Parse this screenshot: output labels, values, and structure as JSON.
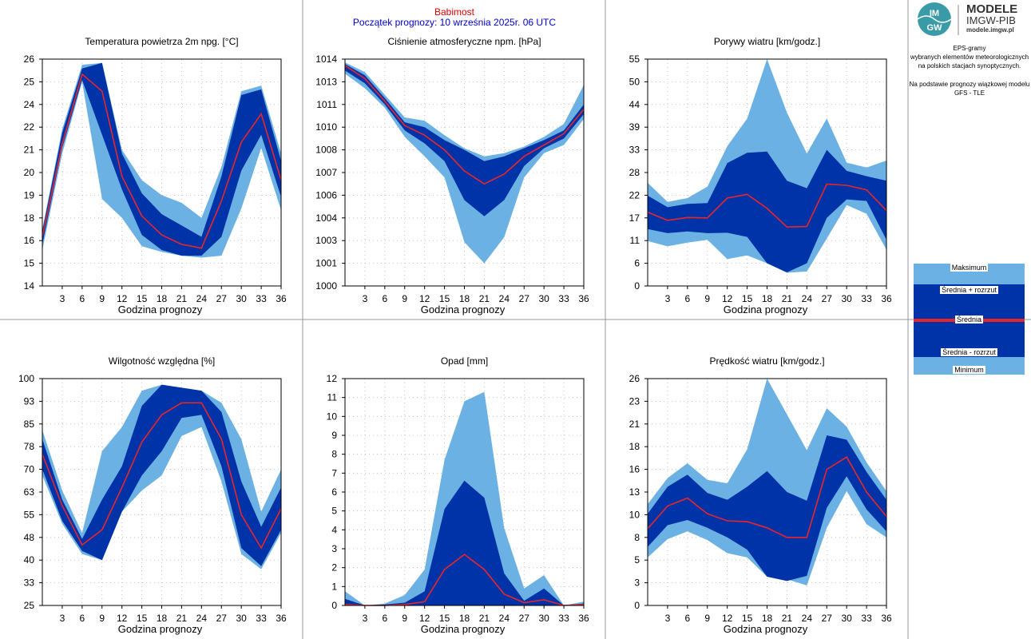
{
  "header": {
    "station": "Babimost",
    "forecast_start": "Początek prognozy: 10 września 2025r. 06 UTC"
  },
  "brand": {
    "logo_text": "IMGW",
    "line1": "MODELE",
    "line2": "IMGW-PIB",
    "line3": "modele.imgw.pl"
  },
  "side_info": {
    "line1": "EPS-gramy",
    "line2": "wybranych elementów meteorologicznych",
    "line3": "na polskich stacjach  synoptycznych.",
    "line4": "Na podstawie prognozy wiązkowej modelu",
    "line5": "GFS - TLE"
  },
  "legend": {
    "max": "Maksimum",
    "mean_plus": "Średnia + rozrzut",
    "mean": "Średnia",
    "mean_minus": "Średnia - rozrzut",
    "min": "Minimum"
  },
  "colors": {
    "envelope": "#6cb1e3",
    "spread": "#0033a8",
    "mean_line": "#e8262a",
    "station_text": "#e00000",
    "start_text": "#0000cc"
  },
  "chart_data": [
    {
      "type": "area",
      "title": "Temperatura powietrza 2m npg. [°C]",
      "xlabel": "Godzina prognozy",
      "x": [
        0,
        3,
        6,
        9,
        12,
        15,
        18,
        21,
        24,
        27,
        30,
        33,
        36
      ],
      "x_ticks": [
        "3",
        "6",
        "9",
        "12",
        "15",
        "18",
        "21",
        "24",
        "27",
        "30",
        "33",
        "36"
      ],
      "yticks": [
        "14",
        "15",
        "16",
        "18",
        "19",
        "20",
        "21",
        "22",
        "24",
        "25",
        "26"
      ],
      "ylim": [
        14,
        26
      ],
      "grid": true,
      "series": [
        {
          "name": "Minimum",
          "values": [
            15.9,
            21.0,
            24.8,
            18.6,
            17.6,
            16.1,
            15.8,
            15.6,
            15.5,
            15.6,
            18.1,
            21.3,
            18.0
          ]
        },
        {
          "name": "Średnia - rozrzut",
          "values": [
            16.2,
            21.3,
            24.9,
            22.0,
            19.1,
            16.7,
            15.9,
            15.6,
            15.6,
            16.6,
            20.1,
            22.0,
            18.7
          ]
        },
        {
          "name": "Średnia",
          "values": [
            16.6,
            21.5,
            25.2,
            24.3,
            19.8,
            17.7,
            16.7,
            16.2,
            16.0,
            18.5,
            21.6,
            23.1,
            19.6
          ]
        },
        {
          "name": "Średnia + rozrzut",
          "values": [
            16.9,
            22.1,
            25.5,
            25.8,
            21.0,
            18.9,
            17.8,
            17.2,
            16.6,
            19.8,
            24.1,
            24.4,
            20.6
          ]
        },
        {
          "name": "Maksimum",
          "values": [
            17.0,
            22.3,
            25.7,
            25.8,
            21.2,
            19.6,
            18.8,
            18.4,
            17.6,
            20.3,
            24.3,
            24.6,
            21.0
          ]
        }
      ]
    },
    {
      "type": "area",
      "title": "Ciśnienie atmosferyczne npm. [hPa]",
      "xlabel": "Godzina prognozy",
      "x": [
        0,
        3,
        6,
        9,
        12,
        15,
        18,
        21,
        24,
        27,
        30,
        33,
        36
      ],
      "x_ticks": [
        "3",
        "6",
        "9",
        "12",
        "15",
        "18",
        "21",
        "24",
        "27",
        "30",
        "33",
        "36"
      ],
      "yticks": [
        "1000",
        "1001",
        "1003",
        "1004",
        "1006",
        "1007",
        "1008",
        "1010",
        "1011",
        "1013",
        "1014"
      ],
      "ylim": [
        1000,
        1014
      ],
      "grid": true,
      "series": [
        {
          "name": "Minimum",
          "values": [
            1013.1,
            1012.2,
            1011.0,
            1009.2,
            1008.0,
            1006.7,
            1002.7,
            1001.4,
            1003.0,
            1006.7,
            1008.2,
            1008.7,
            1010.3
          ]
        },
        {
          "name": "Średnia - rozrzut",
          "values": [
            1013.3,
            1012.5,
            1011.2,
            1009.6,
            1008.8,
            1007.7,
            1005.3,
            1004.3,
            1005.3,
            1007.4,
            1008.5,
            1009.1,
            1010.6
          ]
        },
        {
          "name": "Średnia",
          "values": [
            1013.6,
            1012.8,
            1011.4,
            1009.9,
            1009.3,
            1008.4,
            1007.1,
            1006.3,
            1006.9,
            1008.0,
            1008.7,
            1009.4,
            1010.9
          ]
        },
        {
          "name": "Średnia + rozrzut",
          "values": [
            1013.7,
            1013.0,
            1011.6,
            1010.1,
            1009.8,
            1009.0,
            1008.4,
            1007.7,
            1008.0,
            1008.5,
            1009.0,
            1009.6,
            1011.2
          ]
        },
        {
          "name": "Maksimum",
          "values": [
            1013.8,
            1013.2,
            1011.8,
            1010.4,
            1010.2,
            1009.3,
            1008.5,
            1008.0,
            1008.2,
            1008.6,
            1009.2,
            1010.0,
            1012.4
          ]
        }
      ]
    },
    {
      "type": "area",
      "title": "Porywy wiatru [km/godz.]",
      "xlabel": "Godzina prognozy",
      "x": [
        0,
        3,
        6,
        9,
        12,
        15,
        18,
        21,
        24,
        27,
        30,
        33,
        36
      ],
      "x_ticks": [
        "3",
        "6",
        "9",
        "12",
        "15",
        "18",
        "21",
        "24",
        "27",
        "30",
        "33",
        "36"
      ],
      "yticks": [
        "0",
        "6",
        "11",
        "17",
        "22",
        "28",
        "33",
        "39",
        "44",
        "50",
        "55"
      ],
      "ylim": [
        0,
        55
      ],
      "grid": true,
      "series": [
        {
          "name": "Minimum",
          "values": [
            10.9,
            9.6,
            10.5,
            11.2,
            6.5,
            7.4,
            5.5,
            3.2,
            3.5,
            11.5,
            19.6,
            17.5,
            8.8
          ]
        },
        {
          "name": "Średnia - rozrzut",
          "values": [
            13.8,
            12.8,
            13.2,
            12.8,
            12.9,
            11.9,
            5.5,
            3.3,
            5.5,
            16.5,
            21.0,
            20.6,
            11.2
          ]
        },
        {
          "name": "Średnia",
          "values": [
            17.9,
            15.9,
            16.6,
            16.5,
            21.3,
            22.2,
            18.8,
            14.3,
            14.4,
            24.7,
            24.4,
            23.3,
            18.3
          ]
        },
        {
          "name": "Średnia + rozrzut",
          "values": [
            21.9,
            19.1,
            19.9,
            20.1,
            29.8,
            32.3,
            32.6,
            25.5,
            23.7,
            33.0,
            27.9,
            26.6,
            25.5
          ]
        },
        {
          "name": "Maksimum",
          "values": [
            25.0,
            20.4,
            21.3,
            24.1,
            33.9,
            40.6,
            55.0,
            42.0,
            32.1,
            40.6,
            29.9,
            28.7,
            30.4
          ]
        }
      ]
    },
    {
      "type": "area",
      "title": "Wilgotność względna [%]",
      "xlabel": "Godzina prognozy",
      "x": [
        0,
        3,
        6,
        9,
        12,
        15,
        18,
        21,
        24,
        27,
        30,
        33,
        36
      ],
      "x_ticks": [
        "3",
        "6",
        "9",
        "12",
        "15",
        "18",
        "21",
        "24",
        "27",
        "30",
        "33",
        "36"
      ],
      "yticks": [
        "25",
        "33",
        "40",
        "48",
        "55",
        "63",
        "70",
        "78",
        "85",
        "93",
        "100"
      ],
      "ylim": [
        25,
        100
      ],
      "grid": true,
      "series": [
        {
          "name": "Minimum",
          "values": [
            68,
            52,
            42,
            40,
            56,
            63,
            68,
            81,
            84,
            66,
            42,
            37,
            49
          ]
        },
        {
          "name": "Średnia - rozrzut",
          "values": [
            70,
            53,
            43,
            40,
            56,
            68,
            76,
            87,
            88,
            71,
            44,
            38,
            50
          ]
        },
        {
          "name": "Średnia",
          "values": [
            75,
            58,
            45,
            50,
            64,
            79,
            88,
            92,
            92,
            80,
            55,
            44,
            57
          ]
        },
        {
          "name": "Średnia + rozrzut",
          "values": [
            80,
            60,
            47,
            60,
            71,
            91,
            98,
            97,
            96,
            89,
            66,
            51,
            64
          ]
        },
        {
          "name": "Maksimum",
          "values": [
            83,
            63,
            49,
            76,
            84,
            96,
            98,
            97,
            96,
            92,
            80,
            56,
            70
          ]
        }
      ]
    },
    {
      "type": "area",
      "title": "Opad [mm]",
      "xlabel": "Godzina prognozy",
      "x": [
        0,
        3,
        6,
        9,
        12,
        15,
        18,
        21,
        24,
        27,
        30,
        33,
        36
      ],
      "x_ticks": [
        "3",
        "6",
        "9",
        "12",
        "15",
        "18",
        "21",
        "24",
        "27",
        "30",
        "33",
        "36"
      ],
      "yticks": [
        "0",
        "1",
        "2",
        "3",
        "4",
        "5",
        "6",
        "7",
        "8",
        "9",
        "10",
        "11",
        "12"
      ],
      "ylim": [
        0,
        12
      ],
      "grid": true,
      "series": [
        {
          "name": "Minimum",
          "values": [
            0,
            0,
            0,
            0,
            0,
            0,
            0,
            0,
            0,
            0,
            0,
            0,
            0
          ]
        },
        {
          "name": "Średnia - rozrzut",
          "values": [
            0,
            0,
            0,
            0,
            0,
            0,
            0,
            0,
            0,
            0,
            0,
            0,
            0
          ]
        },
        {
          "name": "Średnia",
          "values": [
            0.05,
            0,
            0,
            0.05,
            0.2,
            1.9,
            2.7,
            1.9,
            0.6,
            0.15,
            0.3,
            0,
            0.05
          ]
        },
        {
          "name": "Średnia + rozrzut",
          "values": [
            0.35,
            0,
            0.05,
            0.15,
            0.75,
            5.1,
            6.6,
            5.7,
            1.7,
            0.25,
            0.9,
            0,
            0.1
          ]
        },
        {
          "name": "Maksimum",
          "values": [
            0.75,
            0,
            0.1,
            0.55,
            1.9,
            7.7,
            10.8,
            11.3,
            4.1,
            0.9,
            1.6,
            0,
            0.2
          ]
        }
      ]
    },
    {
      "type": "area",
      "title": "Prędkość wiatru [km/godz.]",
      "xlabel": "Godzina prognozy",
      "x": [
        0,
        3,
        6,
        9,
        12,
        15,
        18,
        21,
        24,
        27,
        30,
        33,
        36
      ],
      "x_ticks": [
        "3",
        "6",
        "9",
        "12",
        "15",
        "18",
        "21",
        "24",
        "27",
        "30",
        "33",
        "36"
      ],
      "yticks": [
        "0",
        "3",
        "5",
        "8",
        "10",
        "13",
        "16",
        "18",
        "21",
        "23",
        "26"
      ],
      "ylim": [
        0,
        26
      ],
      "grid": true,
      "series": [
        {
          "name": "Minimum",
          "values": [
            5.5,
            7.6,
            8.5,
            7.5,
            6.0,
            5.5,
            3.3,
            3.0,
            2.3,
            8.9,
            13.1,
            9.3,
            7.8
          ]
        },
        {
          "name": "Średnia - rozrzut",
          "values": [
            6.7,
            9.2,
            9.8,
            8.9,
            7.8,
            6.4,
            3.3,
            2.8,
            3.4,
            11.2,
            14.8,
            11.0,
            8.5
          ]
        },
        {
          "name": "Średnia",
          "values": [
            8.8,
            11.4,
            12.3,
            10.5,
            9.7,
            9.6,
            8.9,
            7.8,
            7.8,
            15.6,
            17.0,
            13.0,
            10.2
          ]
        },
        {
          "name": "Średnia + rozrzut",
          "values": [
            10.5,
            13.6,
            15.0,
            12.9,
            12.1,
            13.6,
            15.4,
            13.0,
            12.0,
            19.5,
            19.0,
            15.3,
            12.1
          ]
        },
        {
          "name": "Maksimum",
          "values": [
            11.6,
            14.6,
            16.3,
            14.4,
            14.0,
            17.9,
            26.0,
            21.9,
            17.8,
            22.6,
            20.5,
            16.4,
            13.1
          ]
        }
      ]
    }
  ]
}
